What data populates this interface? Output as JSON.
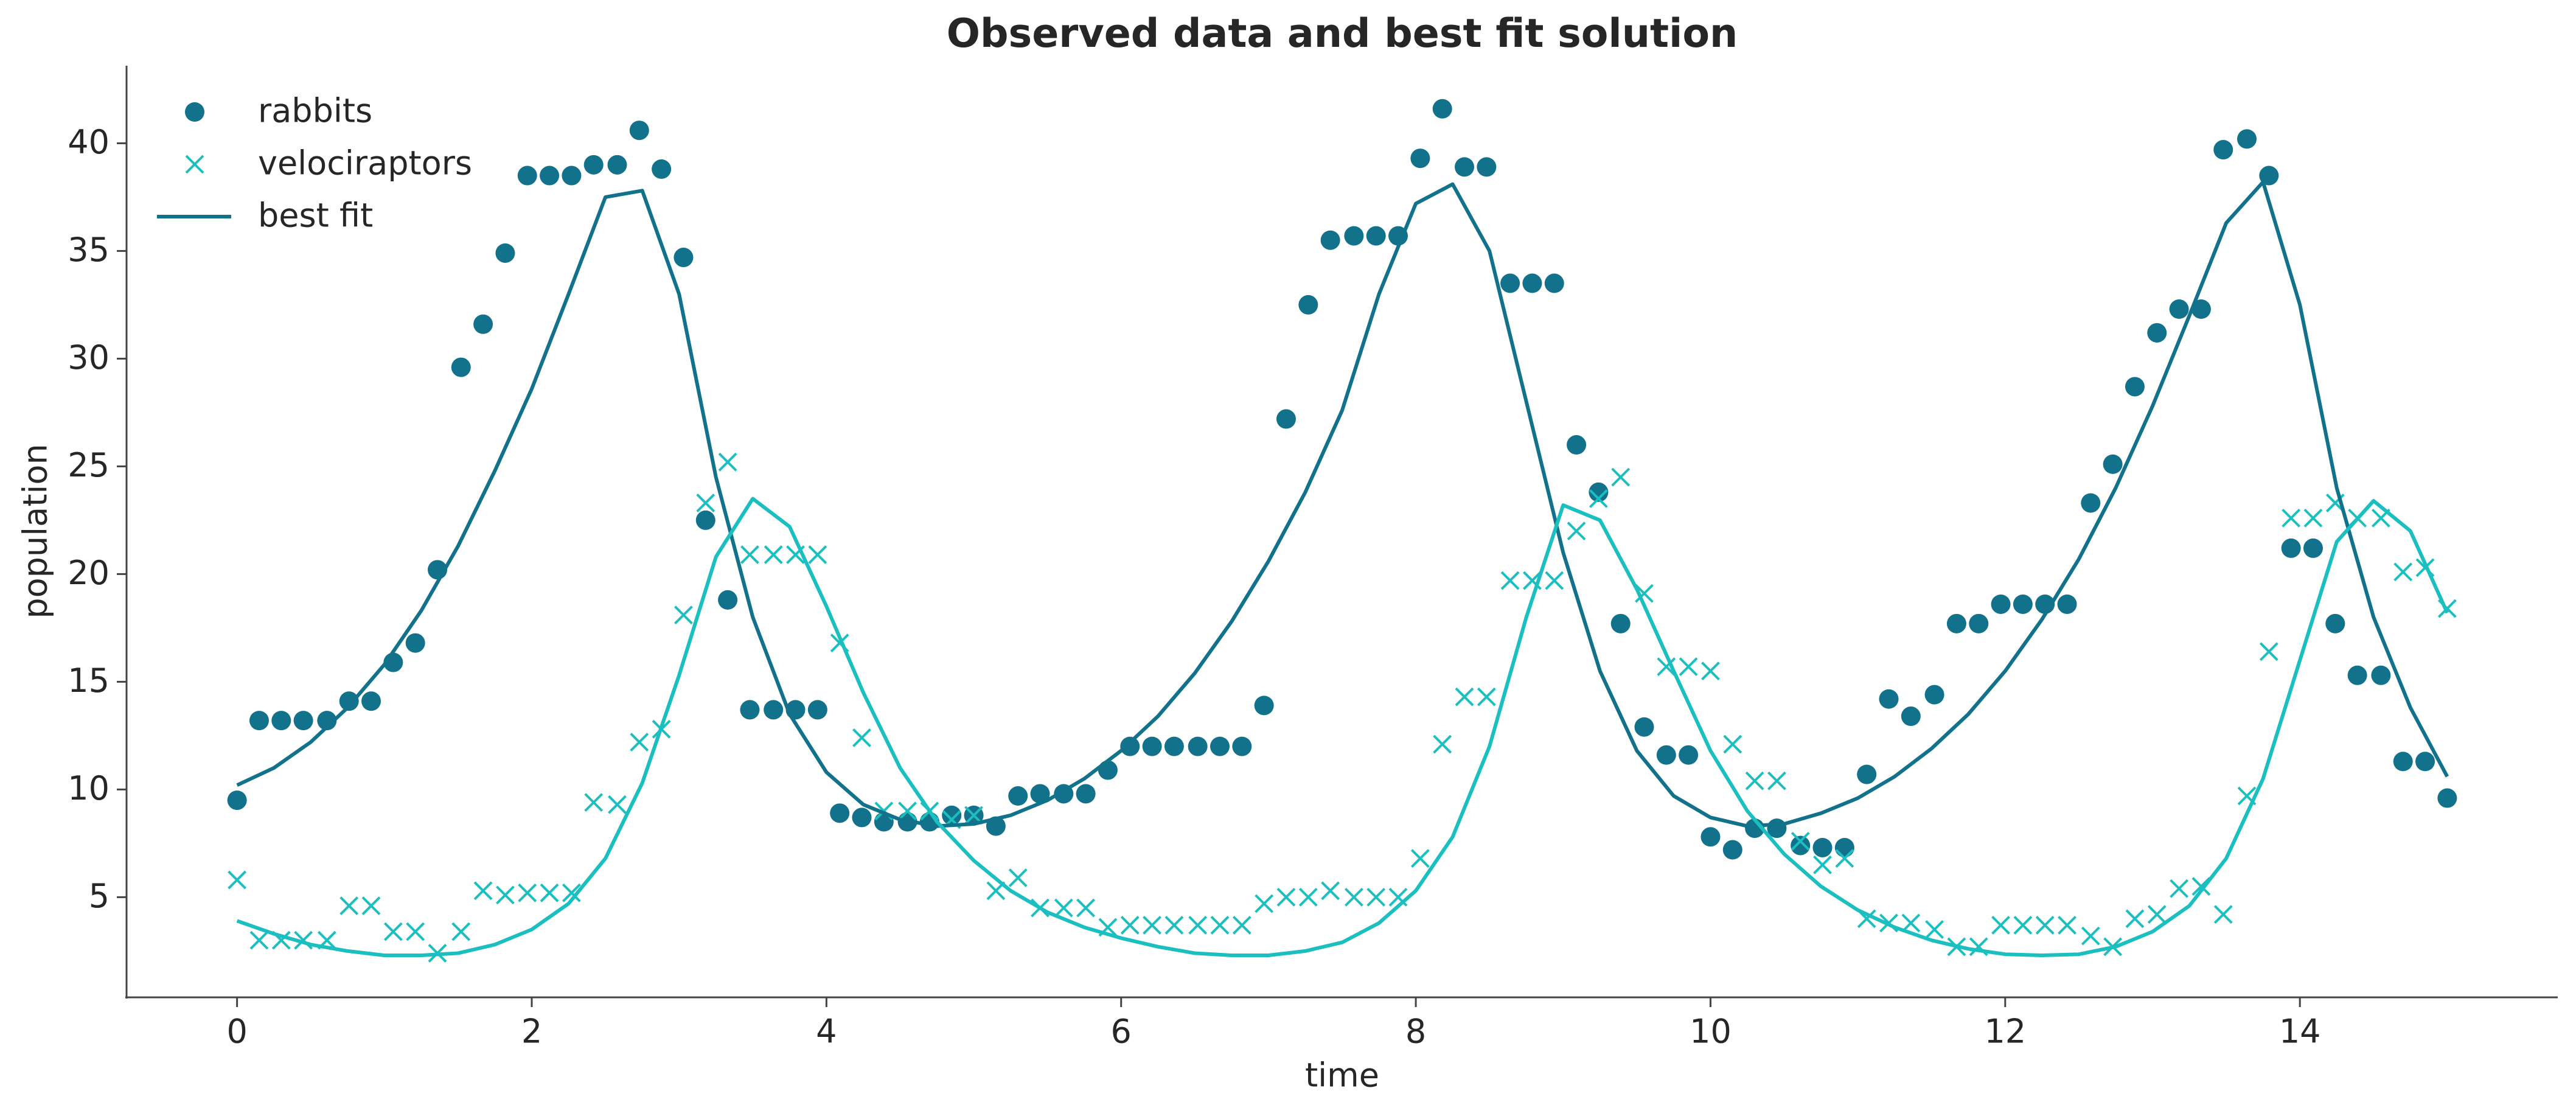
{
  "chart_data": {
    "type": "scatter",
    "title": "Observed data and best fit solution",
    "xlabel": "time",
    "ylabel": "population",
    "x": [
      0,
      0.15,
      0.3,
      0.45,
      0.61,
      0.76,
      0.91,
      1.06,
      1.21,
      1.36,
      1.52,
      1.67,
      1.82,
      1.97,
      2.12,
      2.27,
      2.42,
      2.58,
      2.73,
      2.88,
      3.03,
      3.18,
      3.33,
      3.48,
      3.64,
      3.79,
      3.94,
      4.09,
      4.24,
      4.39,
      4.55,
      4.7,
      4.85,
      5.0,
      5.15,
      5.3,
      5.45,
      5.61,
      5.76,
      5.91,
      6.06,
      6.21,
      6.36,
      6.52,
      6.67,
      6.82,
      6.97,
      7.12,
      7.27,
      7.42,
      7.58,
      7.73,
      7.88,
      8.03,
      8.18,
      8.33,
      8.48,
      8.64,
      8.79,
      8.94,
      9.09,
      9.24,
      9.39,
      9.55,
      9.7,
      9.85,
      10.0,
      10.15,
      10.3,
      10.45,
      10.61,
      10.76,
      10.91,
      11.06,
      11.21,
      11.36,
      11.52,
      11.67,
      11.82,
      11.97,
      12.12,
      12.27,
      12.42,
      12.58,
      12.73,
      12.88,
      13.03,
      13.18,
      13.33,
      13.48,
      13.64,
      13.79,
      13.94,
      14.09,
      14.24,
      14.39,
      14.55,
      14.7,
      14.85,
      15
    ],
    "series": [
      {
        "name": "rabbits",
        "type": "scatter",
        "marker": "o",
        "color": "#12718b",
        "values": [
          9.5,
          13.2,
          13.2,
          13.2,
          13.2,
          14.1,
          14.1,
          15.9,
          16.8,
          20.2,
          29.6,
          31.6,
          34.9,
          38.5,
          38.5,
          38.5,
          39.0,
          39.0,
          40.6,
          38.8,
          34.7,
          22.5,
          18.8,
          13.7,
          13.7,
          13.7,
          13.7,
          8.9,
          8.7,
          8.5,
          8.5,
          8.5,
          8.8,
          8.8,
          8.3,
          9.7,
          9.8,
          9.8,
          9.8,
          10.9,
          12.0,
          12.0,
          12.0,
          12.0,
          12.0,
          12.0,
          13.9,
          27.2,
          32.5,
          35.5,
          35.7,
          35.7,
          35.7,
          39.3,
          41.6,
          38.9,
          38.9,
          33.5,
          33.5,
          33.5,
          26.0,
          23.8,
          17.7,
          12.9,
          11.6,
          11.6,
          7.8,
          7.2,
          8.2,
          8.2,
          7.4,
          7.3,
          7.3,
          10.7,
          14.2,
          13.4,
          14.4,
          17.7,
          17.7,
          18.6,
          18.6,
          18.6,
          18.6,
          23.3,
          25.1,
          28.7,
          31.2,
          32.3,
          32.3,
          39.7,
          40.2,
          38.5,
          21.2,
          21.2,
          17.7,
          15.3,
          15.3,
          11.3,
          11.3,
          9.6
        ]
      },
      {
        "name": "velociraptors",
        "type": "scatter",
        "marker": "x",
        "color": "#1cbfbf",
        "values": [
          5.8,
          3.0,
          3.0,
          3.0,
          3.0,
          4.6,
          4.6,
          3.4,
          3.4,
          2.4,
          3.4,
          5.3,
          5.1,
          5.2,
          5.2,
          5.2,
          9.4,
          9.3,
          12.2,
          12.8,
          18.1,
          23.3,
          25.2,
          20.9,
          20.9,
          20.9,
          20.9,
          16.8,
          12.4,
          9.0,
          9.0,
          9.0,
          8.6,
          8.8,
          5.3,
          5.9,
          4.5,
          4.5,
          4.5,
          3.6,
          3.7,
          3.7,
          3.7,
          3.7,
          3.7,
          3.7,
          4.7,
          5.0,
          5.0,
          5.3,
          5.0,
          5.0,
          5.0,
          6.8,
          12.1,
          14.3,
          14.3,
          19.7,
          19.7,
          19.7,
          22.0,
          23.5,
          24.5,
          19.1,
          15.7,
          15.7,
          15.5,
          12.1,
          10.4,
          10.4,
          7.6,
          6.5,
          6.8,
          4.0,
          3.8,
          3.8,
          3.5,
          2.7,
          2.7,
          3.7,
          3.7,
          3.7,
          3.7,
          3.2,
          2.7,
          4.0,
          4.2,
          5.4,
          5.5,
          4.2,
          9.7,
          16.4,
          22.6,
          22.6,
          23.3,
          22.6,
          22.6,
          20.1,
          20.3,
          18.4
        ]
      },
      {
        "name": "best fit",
        "type": "line",
        "color": "#12718b",
        "x": [
          0,
          0.25,
          0.5,
          0.75,
          1,
          1.25,
          1.5,
          1.75,
          2,
          2.25,
          2.5,
          2.75,
          3,
          3.25,
          3.5,
          3.75,
          4,
          4.25,
          4.5,
          4.75,
          5,
          5.25,
          5.5,
          5.75,
          6,
          6.25,
          6.5,
          6.75,
          7,
          7.25,
          7.5,
          7.75,
          8,
          8.25,
          8.5,
          8.75,
          9,
          9.25,
          9.5,
          9.75,
          10,
          10.25,
          10.5,
          10.75,
          11,
          11.25,
          11.5,
          11.75,
          12,
          12.25,
          12.5,
          12.75,
          13,
          13.25,
          13.5,
          13.75,
          14,
          14.25,
          14.5,
          14.75,
          15
        ],
        "values": [
          10.2,
          11.0,
          12.2,
          13.8,
          15.8,
          18.3,
          21.3,
          24.8,
          28.6,
          33.0,
          37.5,
          37.8,
          33.0,
          24.5,
          18.0,
          13.5,
          10.8,
          9.3,
          8.6,
          8.3,
          8.4,
          8.8,
          9.5,
          10.5,
          11.8,
          13.4,
          15.4,
          17.8,
          20.6,
          23.8,
          27.6,
          33.0,
          37.2,
          38.1,
          35.0,
          28.0,
          21.0,
          15.5,
          11.8,
          9.7,
          8.7,
          8.3,
          8.4,
          8.9,
          9.6,
          10.6,
          11.9,
          13.5,
          15.5,
          17.9,
          20.7,
          24.0,
          27.8,
          32.0,
          36.3,
          38.2,
          32.5,
          24.0,
          18.0,
          13.8,
          10.6
        ]
      },
      {
        "type": "line",
        "color": "#1cbfbf",
        "x": [
          0,
          0.25,
          0.5,
          0.75,
          1,
          1.25,
          1.5,
          1.75,
          2,
          2.25,
          2.5,
          2.75,
          3,
          3.25,
          3.5,
          3.75,
          4,
          4.25,
          4.5,
          4.75,
          5,
          5.25,
          5.5,
          5.75,
          6,
          6.25,
          6.5,
          6.75,
          7,
          7.25,
          7.5,
          7.75,
          8,
          8.25,
          8.5,
          8.75,
          9,
          9.25,
          9.5,
          9.75,
          10,
          10.25,
          10.5,
          10.75,
          11,
          11.25,
          11.5,
          11.75,
          12,
          12.25,
          12.5,
          12.75,
          13,
          13.25,
          13.5,
          13.75,
          14,
          14.25,
          14.5,
          14.75,
          15
        ],
        "values": [
          3.9,
          3.3,
          2.8,
          2.5,
          2.3,
          2.3,
          2.4,
          2.8,
          3.5,
          4.7,
          6.8,
          10.3,
          15.3,
          20.8,
          23.5,
          22.2,
          18.5,
          14.5,
          11.0,
          8.5,
          6.7,
          5.3,
          4.3,
          3.6,
          3.1,
          2.7,
          2.4,
          2.3,
          2.3,
          2.5,
          2.9,
          3.8,
          5.3,
          7.8,
          12.0,
          18.0,
          23.2,
          22.5,
          19.3,
          15.5,
          11.8,
          9.0,
          7.0,
          5.5,
          4.4,
          3.6,
          3.0,
          2.6,
          2.35,
          2.3,
          2.35,
          2.7,
          3.4,
          4.6,
          6.8,
          10.5,
          16.0,
          21.5,
          23.4,
          22.0,
          18.2
        ]
      }
    ],
    "xlim": [
      -0.75,
      15.75
    ],
    "ylim": [
      0.35,
      43.6
    ],
    "xticks": [
      0,
      2,
      4,
      6,
      8,
      10,
      12,
      14
    ],
    "yticks": [
      5,
      10,
      15,
      20,
      25,
      30,
      35,
      40
    ],
    "legend": "upper left"
  }
}
